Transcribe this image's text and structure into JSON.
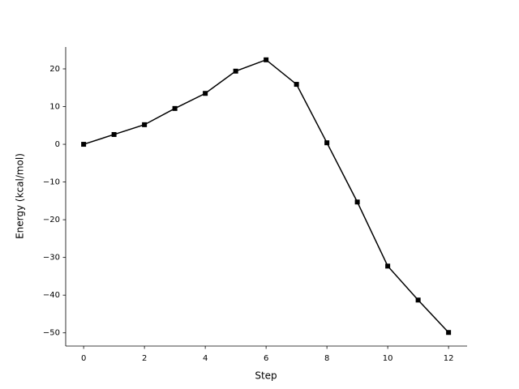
{
  "chart_data": {
    "type": "line",
    "x_label": "Step",
    "y_label": "Energy (kcal/mol)",
    "x": [
      0,
      1,
      2,
      3,
      4,
      5,
      6,
      7,
      8,
      9,
      10,
      11,
      12
    ],
    "series": [
      {
        "color": "#000000",
        "marker": "square",
        "values": [
          0,
          2.6,
          5.2,
          9.5,
          13.5,
          19.4,
          22.4,
          15.9,
          0.4,
          -15.3,
          -32.3,
          -41.3,
          -49.9
        ]
      }
    ],
    "xlim": [
      -0.59,
      12.61
    ],
    "ylim": [
      -53.5,
      25.8
    ],
    "xticks": [
      0,
      2,
      4,
      6,
      8,
      10,
      12
    ],
    "yticks": [
      {
        "value": -50,
        "label": "−50"
      },
      {
        "value": -40,
        "label": "−40"
      },
      {
        "value": -30,
        "label": "−30"
      },
      {
        "value": -20,
        "label": "−20"
      },
      {
        "value": -10,
        "label": "−10"
      },
      0,
      10,
      20
    ],
    "grid": false
  }
}
